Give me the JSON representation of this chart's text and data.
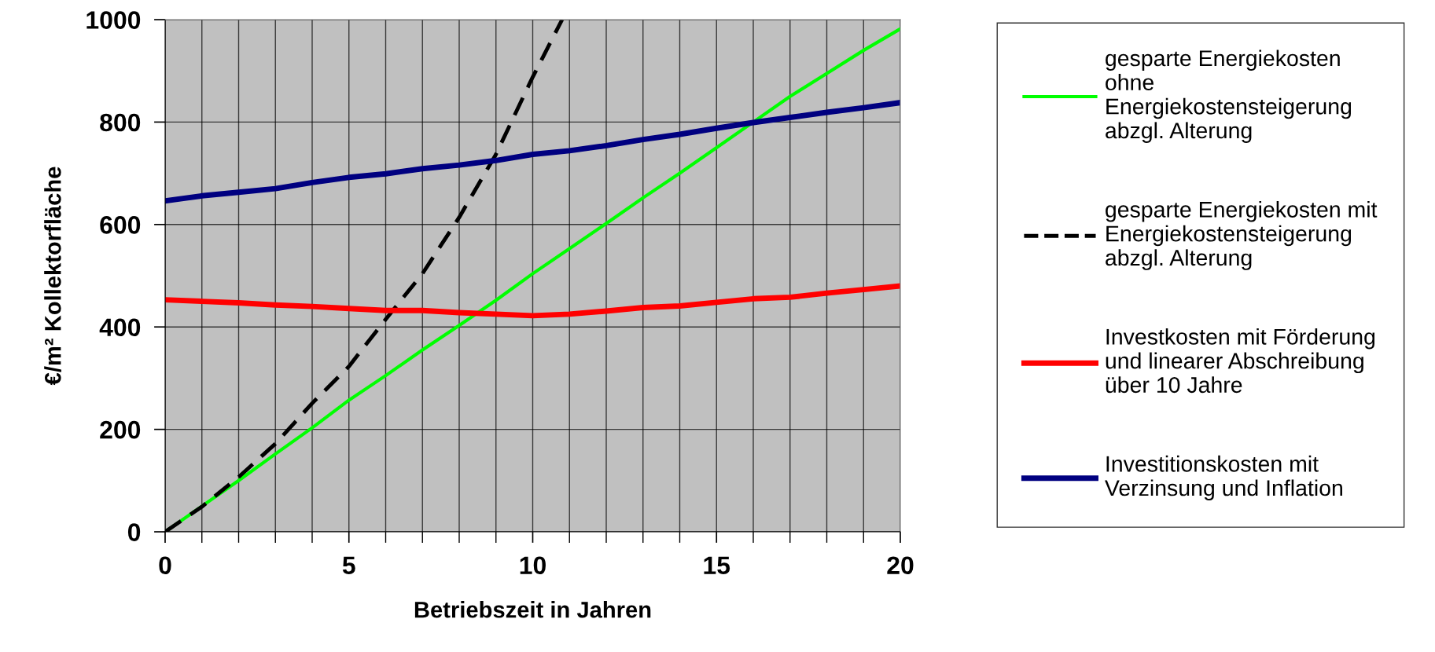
{
  "chart_data": {
    "type": "line",
    "xlabel": "Betriebszeit in Jahren",
    "ylabel": "€/m² Kollektorfläche",
    "x": [
      0,
      1,
      2,
      3,
      4,
      5,
      6,
      7,
      8,
      9,
      10,
      11,
      12,
      13,
      14,
      15,
      16,
      17,
      18,
      19,
      20
    ],
    "xlim": [
      0,
      20
    ],
    "xticks": [
      0,
      5,
      10,
      15,
      20
    ],
    "ylim": [
      0,
      1000
    ],
    "yticks": [
      0,
      200,
      400,
      600,
      800,
      1000
    ],
    "grid": true,
    "legend": "right",
    "marker": "none",
    "series": [
      {
        "name": "gesparte Energiekosten\nohne\nEnergiekostensteigerung\nabzgl. Alterung",
        "color": "#00ff00",
        "line_style": "solid",
        "values": [
          0,
          50,
          100,
          152,
          203,
          257,
          305,
          355,
          403,
          452,
          504,
          553,
          602,
          652,
          700,
          750,
          800,
          850,
          895,
          940,
          982
        ]
      },
      {
        "name": "gesparte Energiekosten mit\nEnergiekostensteigerung\nabzgl. Alterung",
        "color": "#000000",
        "line_style": "dashed",
        "x": [
          0,
          1,
          2,
          3,
          4,
          5,
          6,
          7,
          8,
          9,
          10,
          10.8
        ],
        "values": [
          0,
          49,
          107,
          172,
          251,
          323,
          415,
          504,
          614,
          737,
          888,
          1000
        ]
      },
      {
        "name": "Investkosten mit Förderung\nund linearer Abschreibung\nüber 10 Jahre",
        "color": "#ff0000",
        "line_style": "solid",
        "values": [
          453,
          450,
          447,
          443,
          440,
          436,
          432,
          432,
          428,
          425,
          422,
          425,
          431,
          438,
          441,
          448,
          455,
          458,
          466,
          473,
          480
        ]
      },
      {
        "name": "Investitionskosten mit\nVerzinsung und Inflation",
        "color": "#000080",
        "line_style": "solid",
        "values": [
          646,
          656,
          663,
          670,
          682,
          692,
          699,
          709,
          716,
          725,
          737,
          744,
          754,
          766,
          776,
          788,
          799,
          809,
          819,
          828,
          838
        ]
      }
    ]
  }
}
